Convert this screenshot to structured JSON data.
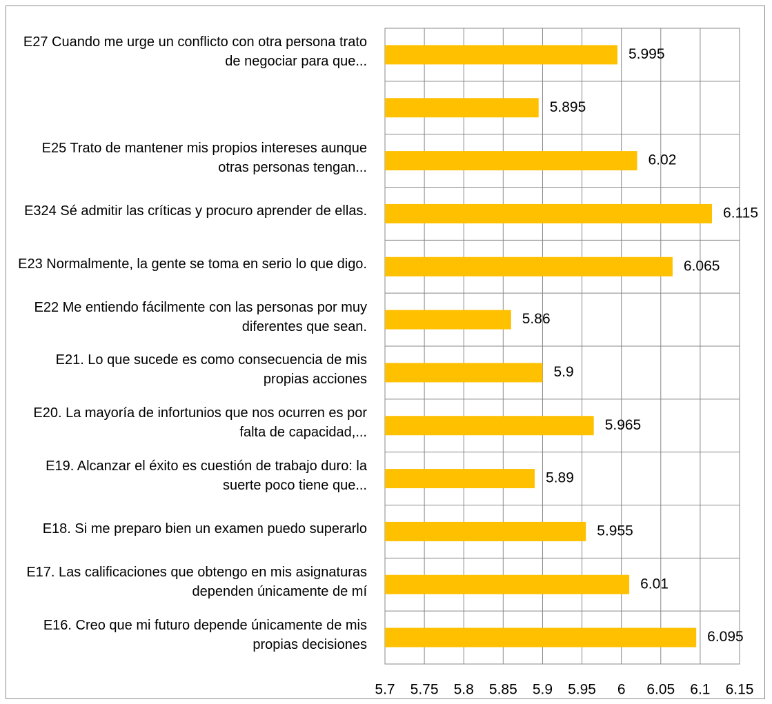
{
  "chart_data": {
    "type": "bar",
    "orientation": "horizontal",
    "categories": [
      "E27 Cuando me urge un conflicto con otra persona trato de negociar para que...",
      null,
      "E25 Trato de mantener mis propios intereses aunque otras personas tengan...",
      "E324 Sé admitir las críticas y procuro aprender de ellas.",
      "E23 Normalmente, la gente se toma en serio lo que digo.",
      "E22 Me entiendo fácilmente con las personas por muy diferentes que sean.",
      "E21. Lo que sucede es como consecuencia de mis propias acciones",
      "E20. La mayoría de infortunios que nos ocurren es por falta de capacidad,...",
      "E19. Alcanzar el éxito es cuestión de trabajo duro: la suerte poco tiene que...",
      "E18. Si me preparo bien un examen puedo superarlo",
      "E17. Las calificaciones que obtengo en mis asignaturas dependen únicamente de mí",
      "E16. Creo que mi futuro depende únicamente de mis propias decisiones"
    ],
    "values": [
      5.995,
      5.895,
      6.02,
      6.115,
      6.065,
      5.86,
      5.9,
      5.965,
      5.89,
      5.955,
      6.01,
      6.095
    ],
    "color": "#ffc000",
    "xlim": [
      5.7,
      6.15
    ],
    "xticks": [
      5.7,
      5.75,
      5.8,
      5.85,
      5.9,
      5.95,
      6,
      6.05,
      6.1,
      6.15
    ],
    "grid": true
  }
}
